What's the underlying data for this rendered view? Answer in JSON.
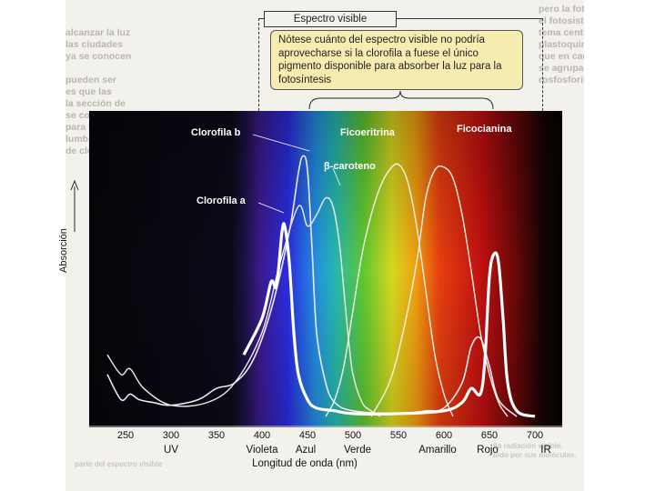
{
  "background_text": {
    "left": [
      "alcanzar la luz",
      "las ciudades",
      "ya se conocen",
      "pueden ser",
      "es que las",
      "la sección de",
      "se convierte",
      "para todas las",
      "lumbre de los",
      "de cloro-"
    ],
    "right": [
      "pero la fotosíntesis: De ellas, dos casos importantes",
      "el fotosistema I y el fotosistema II. El",
      "tema central es la molécula del pigmento",
      "plastoquinona. Los plastos",
      "que en cada fotosistema",
      "se agrupan con",
      "rosfosforila"
    ],
    "bottom": [
      "ña radiación visible.",
      "bido por sus moléculas.",
      "parte del espectro visible"
    ]
  },
  "visible_spectrum_label": "Espectro visible",
  "note": "Nótese cuánto del espectro visible no podría aprovecharse si la clorofila a fuese el único pigmento disponible para absorber la luz para la fotosíntesis",
  "chart_data": {
    "type": "line",
    "title": "",
    "xlabel": "Longitud de onda (nm)",
    "ylabel": "Absorción",
    "xlim": [
      210,
      730
    ],
    "ylim": [
      0,
      1.0
    ],
    "xticks": [
      250,
      300,
      350,
      400,
      450,
      500,
      550,
      600,
      650,
      700
    ],
    "regions": [
      {
        "name": "UV",
        "x": 300
      },
      {
        "name": "Violeta",
        "x": 400
      },
      {
        "name": "Azul",
        "x": 448
      },
      {
        "name": "Verde",
        "x": 505
      },
      {
        "name": "Amarillo",
        "x": 593
      },
      {
        "name": "Rojo",
        "x": 648
      },
      {
        "name": "IR",
        "x": 712
      }
    ],
    "series": [
      {
        "name": "Clorofila a",
        "color": "#ffffff",
        "width": 3.2,
        "x": [
          380,
          400,
          410,
          415,
          418,
          422,
          425,
          430,
          435,
          440,
          450,
          460,
          480,
          500,
          550,
          600,
          620,
          630,
          640,
          645,
          650,
          655,
          660,
          665,
          670,
          680,
          700
        ],
        "y": [
          0.22,
          0.35,
          0.48,
          0.46,
          0.52,
          0.66,
          0.68,
          0.55,
          0.3,
          0.15,
          0.06,
          0.03,
          0.02,
          0.01,
          0.01,
          0.02,
          0.05,
          0.1,
          0.08,
          0.2,
          0.5,
          0.58,
          0.55,
          0.35,
          0.12,
          0.02,
          0.0
        ]
      },
      {
        "name": "Clorofila b",
        "color": "#ece6f8",
        "width": 1.6,
        "x": [
          230,
          245,
          255,
          265,
          280,
          300,
          330,
          350,
          370,
          390,
          410,
          430,
          440,
          445,
          450,
          455,
          460,
          470,
          480,
          500,
          550,
          580,
          600,
          620,
          630,
          640,
          650,
          660,
          680
        ],
        "y": [
          0.15,
          0.06,
          0.08,
          0.06,
          0.05,
          0.04,
          0.06,
          0.1,
          0.12,
          0.2,
          0.38,
          0.66,
          0.87,
          0.93,
          0.88,
          0.6,
          0.3,
          0.12,
          0.05,
          0.02,
          0.01,
          0.02,
          0.03,
          0.12,
          0.25,
          0.28,
          0.18,
          0.06,
          0.0
        ]
      },
      {
        "name": "β-caroteno",
        "color": "#f0ecdf",
        "width": 1.4,
        "x": [
          230,
          245,
          255,
          270,
          300,
          340,
          370,
          400,
          420,
          440,
          450,
          460,
          470,
          478,
          485,
          490,
          495,
          500,
          510,
          520,
          530
        ],
        "y": [
          0.22,
          0.15,
          0.17,
          0.1,
          0.04,
          0.05,
          0.12,
          0.3,
          0.55,
          0.75,
          0.68,
          0.72,
          0.78,
          0.75,
          0.62,
          0.45,
          0.28,
          0.15,
          0.05,
          0.02,
          0.0
        ]
      },
      {
        "name": "Ficoeritrina",
        "color": "#f4f2ea",
        "width": 1.4,
        "x": [
          470,
          480,
          490,
          500,
          510,
          520,
          530,
          540,
          550,
          560,
          570,
          580,
          590,
          600,
          610
        ],
        "y": [
          0.0,
          0.06,
          0.18,
          0.38,
          0.58,
          0.72,
          0.82,
          0.88,
          0.9,
          0.84,
          0.68,
          0.45,
          0.22,
          0.08,
          0.0
        ]
      },
      {
        "name": "Ficocianina",
        "color": "#f8f0e0",
        "width": 1.4,
        "x": [
          520,
          540,
          555,
          570,
          580,
          590,
          600,
          610,
          620,
          630,
          640,
          650,
          660,
          670
        ],
        "y": [
          0.0,
          0.12,
          0.3,
          0.55,
          0.78,
          0.88,
          0.89,
          0.85,
          0.72,
          0.52,
          0.3,
          0.15,
          0.05,
          0.0
        ]
      }
    ],
    "labels": [
      {
        "text": "Clorofila b",
        "series": "Clorofila b"
      },
      {
        "text": "β-caroteno",
        "series": "β-caroteno"
      },
      {
        "text": "Clorofila a",
        "series": "Clorofila a"
      },
      {
        "text": "Ficoeritrina",
        "series": "Ficoeritrina"
      },
      {
        "text": "Ficocianina",
        "series": "Ficocianina"
      }
    ]
  }
}
